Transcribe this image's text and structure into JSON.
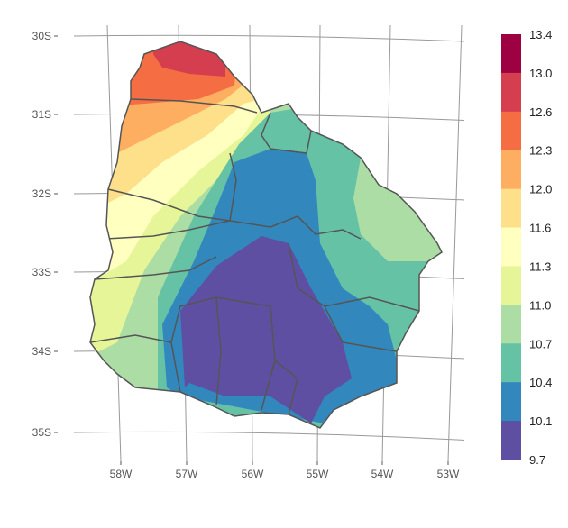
{
  "map": {
    "lat_ticks": [
      "30S",
      "31S",
      "32S",
      "33S",
      "34S",
      "35S"
    ],
    "lon_ticks": [
      "58W",
      "57W",
      "56W",
      "55W",
      "54W",
      "53W"
    ]
  },
  "legend": {
    "breaks": [
      "13.4",
      "13.0",
      "12.6",
      "12.3",
      "12.0",
      "11.6",
      "11.3",
      "11.0",
      "10.7",
      "10.4",
      "10.1",
      "9.7"
    ],
    "colors": [
      "#9E0142",
      "#D53E4F",
      "#F46D43",
      "#FDAE61",
      "#FEE08B",
      "#FFFFBF",
      "#E6F598",
      "#ABDDA4",
      "#66C2A5",
      "#3288BD",
      "#5E4FA2"
    ]
  }
}
